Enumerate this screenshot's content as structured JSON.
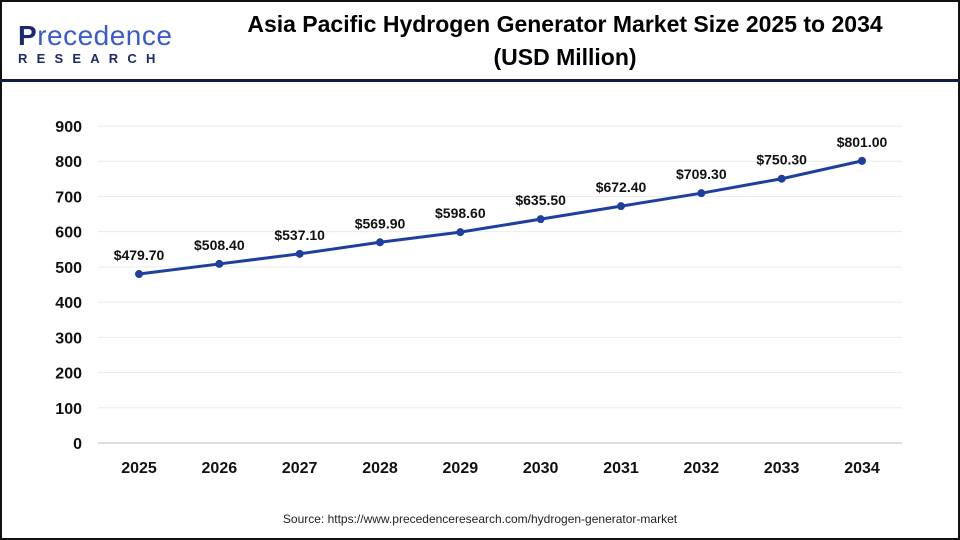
{
  "logo": {
    "main_first": "P",
    "main_rest": "recedence",
    "sub": "RESEARCH"
  },
  "title_line1": "Asia Pacific Hydrogen Generator Market Size 2025 to 2034",
  "title_line2": "(USD Million)",
  "source": "Source: https://www.precedenceresearch.com/hydrogen-generator-market",
  "chart_data": {
    "type": "line",
    "title": "Asia Pacific Hydrogen Generator Market Size 2025 to 2034 (USD Million)",
    "categories": [
      "2025",
      "2026",
      "2027",
      "2028",
      "2029",
      "2030",
      "2031",
      "2032",
      "2033",
      "2034"
    ],
    "values": [
      479.7,
      508.4,
      537.1,
      569.9,
      598.6,
      635.5,
      672.4,
      709.3,
      750.3,
      801.0
    ],
    "data_labels": [
      "$479.70",
      "$508.40",
      "$537.10",
      "$569.90",
      "$598.60",
      "$635.50",
      "$672.40",
      "$709.30",
      "$750.30",
      "$801.00"
    ],
    "ylim": [
      0,
      900
    ],
    "yticks": [
      0,
      100,
      200,
      300,
      400,
      500,
      600,
      700,
      800,
      900
    ],
    "grid": true,
    "line_color": "#1f3f9e",
    "xlabel": "",
    "ylabel": ""
  }
}
